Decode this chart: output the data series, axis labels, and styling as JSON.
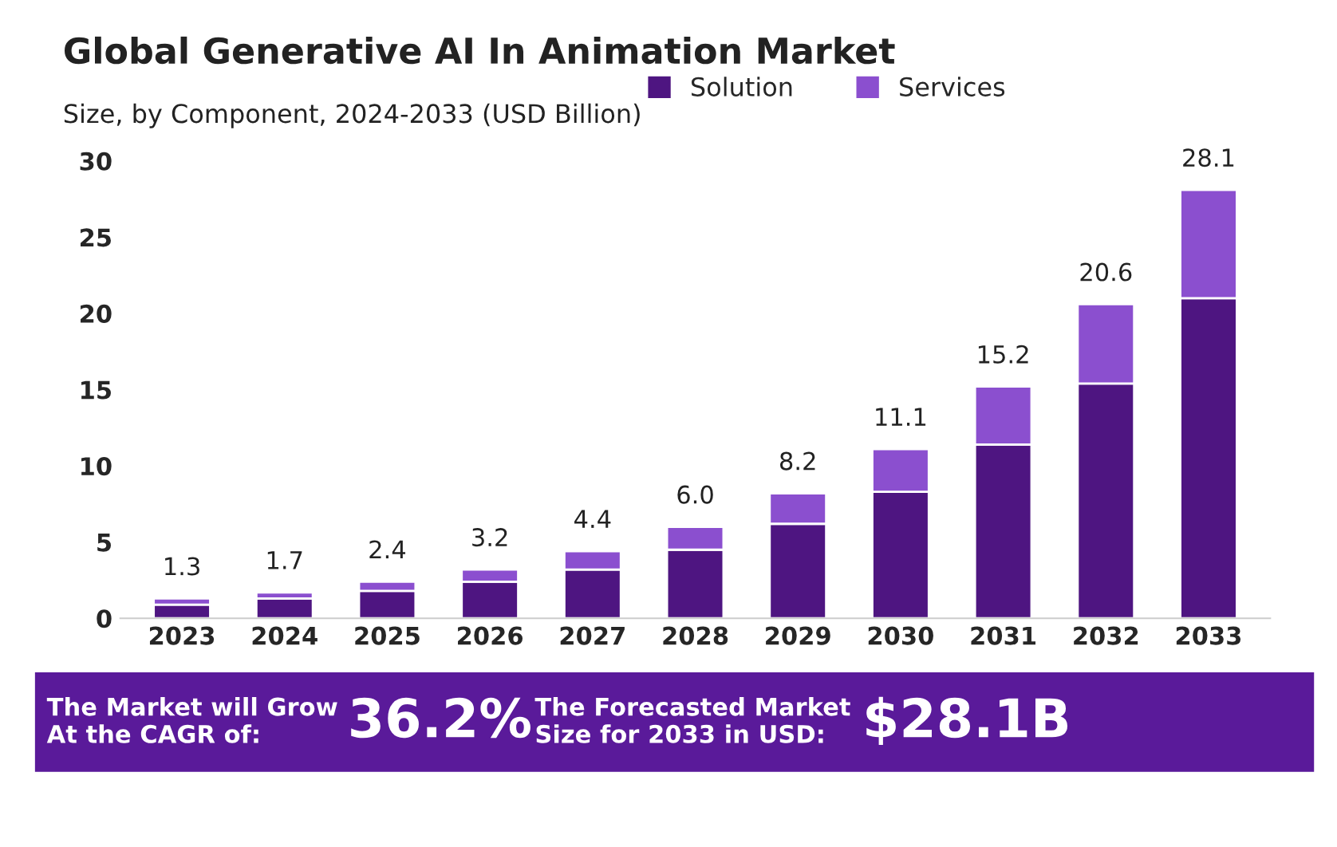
{
  "chart_data": {
    "type": "bar",
    "title": "Global Generative AI In Animation Market",
    "subtitle": "Size, by Component, 2024-2033 (USD Billion)",
    "categories": [
      "2023",
      "2024",
      "2025",
      "2026",
      "2027",
      "2028",
      "2029",
      "2030",
      "2031",
      "2032",
      "2033"
    ],
    "stacked": true,
    "series": [
      {
        "name": "Solution",
        "color": "#4e1581",
        "values": [
          0.9,
          1.3,
          1.8,
          2.4,
          3.2,
          4.5,
          6.2,
          8.3,
          11.4,
          15.4,
          21.0
        ]
      },
      {
        "name": "Services",
        "color": "#8b4fcf",
        "values": [
          0.4,
          0.4,
          0.6,
          0.8,
          1.2,
          1.5,
          2.0,
          2.8,
          3.8,
          5.2,
          7.1
        ]
      }
    ],
    "totals": [
      "1.3",
      "1.7",
      "2.4",
      "3.2",
      "4.4",
      "6.0",
      "8.2",
      "11.1",
      "15.2",
      "20.6",
      "28.1"
    ],
    "ylim": [
      0,
      30
    ],
    "yticks": [
      0,
      5,
      10,
      15,
      20,
      25,
      30
    ],
    "grid": false,
    "legend": "top right",
    "annotations": [
      "The Market will Grow\nAt the CAGR of:",
      "36.2%",
      "The Forecasted Market\nSize for 2033 in USD:",
      "$28.1B"
    ]
  }
}
